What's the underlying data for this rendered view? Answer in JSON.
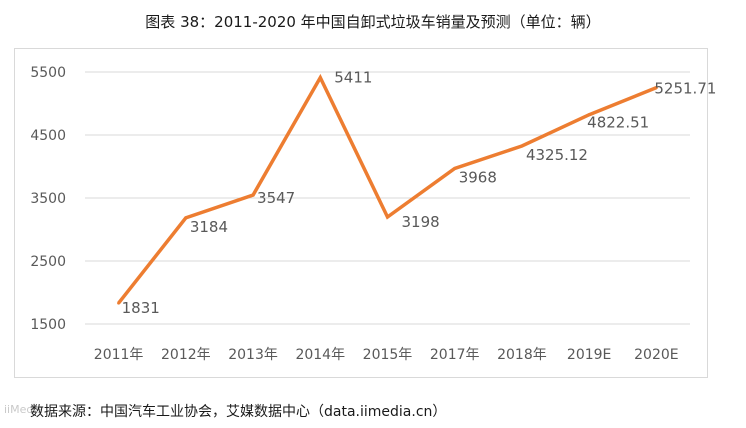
{
  "title": "图表 38：2011-2020 年中国自卸式垃圾车销量及预测（单位：辆）",
  "source": "数据来源：中国汽车工业协会，艾媒数据中心（data.iimedia.cn）",
  "watermark": "iiMedia",
  "colors": {
    "line": "#ed7d31",
    "grid": "#d9d9d9",
    "frame": "#d9d9d9",
    "text": "#595959"
  },
  "chart_data": {
    "type": "line",
    "title": "图表 38：2011-2020 年中国自卸式垃圾车销量及预测（单位：辆）",
    "xlabel": "",
    "ylabel": "",
    "categories": [
      "2011年",
      "2012年",
      "2013年",
      "2014年",
      "2015年",
      "2017年",
      "2018年",
      "2019E",
      "2020E"
    ],
    "series": [
      {
        "values": [
          1831,
          3184,
          3547,
          5411,
          3198,
          3968,
          4325.12,
          4822.51,
          5251.71
        ]
      }
    ],
    "data_labels": [
      "1831",
      "3184",
      "3547",
      "5411",
      "3198",
      "3968",
      "4325.12",
      "4822.51",
      "5251.71"
    ],
    "ylim": [
      1500,
      5500
    ],
    "yticks": [
      1500,
      2500,
      3500,
      4500,
      5500
    ],
    "ytick_labels": [
      "1500",
      "2500",
      "3500",
      "4500",
      "5500"
    ],
    "grid": true,
    "legend": "none"
  }
}
